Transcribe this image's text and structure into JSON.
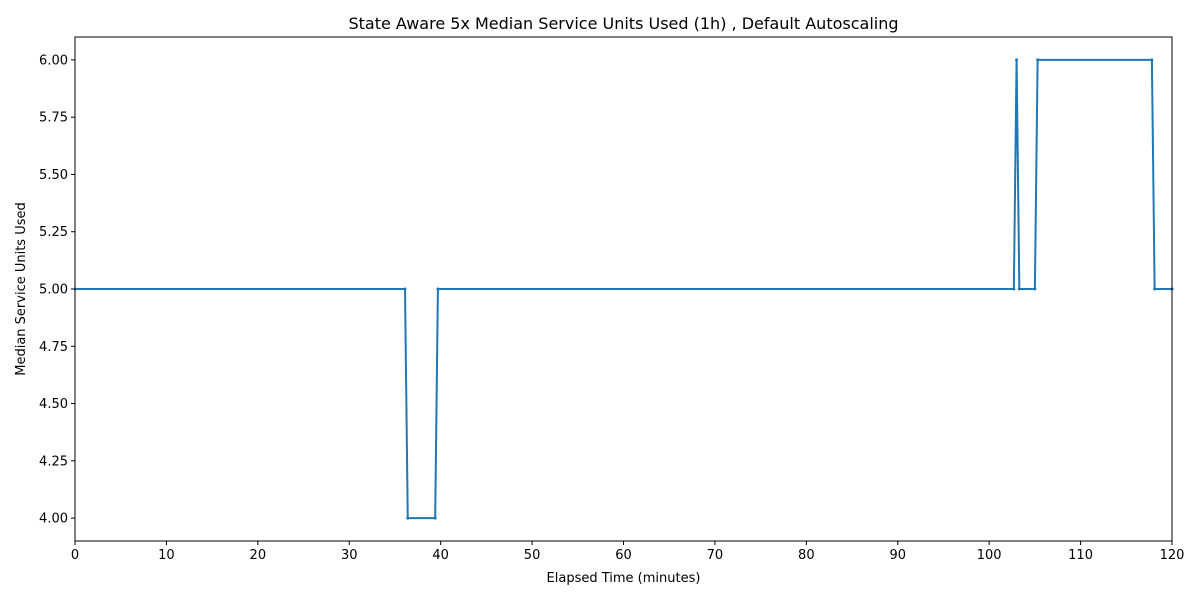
{
  "chart_data": {
    "type": "line",
    "title": "State Aware 5x Median Service Units Used (1h) , Default Autoscaling",
    "xlabel": "Elapsed Time (minutes)",
    "ylabel": "Median Service Units Used",
    "xlim": [
      0,
      120
    ],
    "ylim": [
      3.9,
      6.1
    ],
    "xticks": [
      0,
      10,
      20,
      30,
      40,
      50,
      60,
      70,
      80,
      90,
      100,
      110,
      120
    ],
    "yticks": [
      4.0,
      4.25,
      4.5,
      4.75,
      5.0,
      5.25,
      5.5,
      5.75,
      6.0
    ],
    "ytick_labels": [
      "4.00",
      "4.25",
      "4.50",
      "4.75",
      "5.00",
      "5.25",
      "5.50",
      "5.75",
      "6.00"
    ],
    "grid": false,
    "color": "#1f77b4",
    "series": [
      {
        "x": [
          0,
          36.1,
          36.4,
          39.4,
          39.7,
          102.7,
          103.0,
          103.3,
          105.0,
          105.3,
          117.8,
          118.1,
          120
        ],
        "y": [
          5,
          5,
          4,
          4,
          5,
          5,
          6,
          5,
          5,
          6,
          6,
          5,
          5
        ]
      }
    ]
  }
}
